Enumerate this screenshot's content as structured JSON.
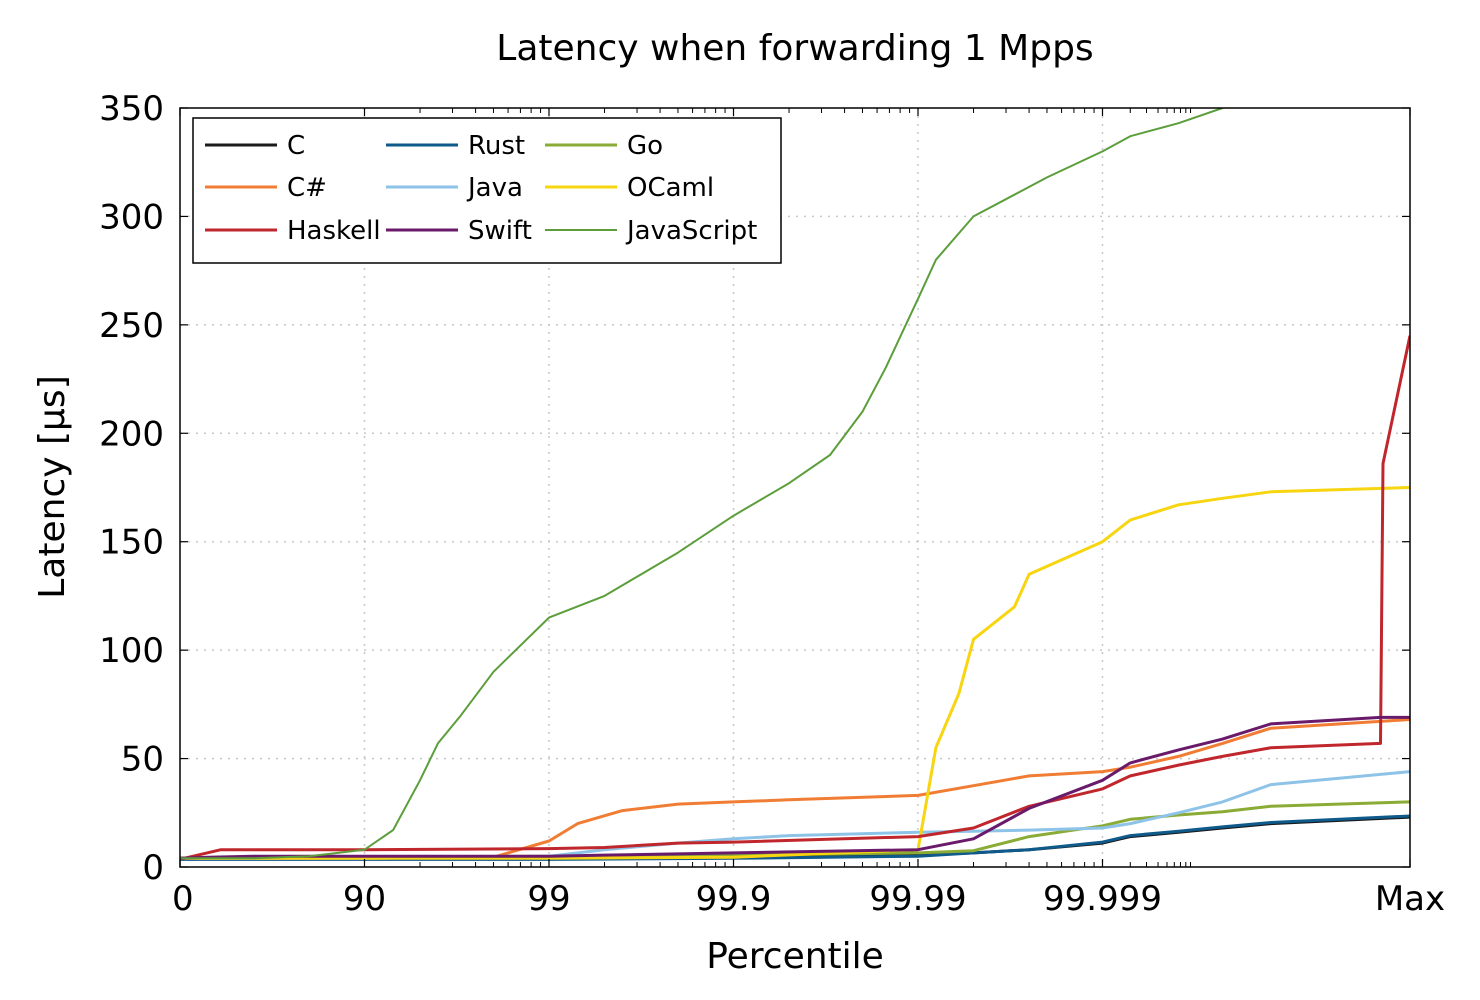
{
  "chart_data": {
    "type": "line",
    "title": "Latency when forwarding 1 Mpps",
    "xlabel": "Percentile",
    "ylabel": "Latency [μs]",
    "x_scale": "inverse-percentile (log of 1/(1-p)), ending at Max",
    "x_tick_labels": [
      "0",
      "90",
      "99",
      "99.9",
      "99.99",
      "99.999",
      "Max"
    ],
    "ylim": [
      0,
      350
    ],
    "y_ticks": [
      0,
      50,
      100,
      150,
      200,
      250,
      300,
      350
    ],
    "grid": true,
    "legend_position": "top-left",
    "legend_columns": 3,
    "x": [
      0,
      0.9,
      0.99,
      0.999,
      0.9999,
      0.99999,
      "Max"
    ],
    "series": [
      {
        "name": "C",
        "color": "#1a1a1a",
        "points": [
          [
            0,
            4
          ],
          [
            0.3,
            4
          ],
          [
            0.6,
            4
          ],
          [
            0.9,
            4
          ],
          [
            0.99,
            4
          ],
          [
            0.999,
            4.5
          ],
          [
            0.9999,
            5.5
          ],
          [
            0.99995,
            6.5
          ],
          [
            0.999975,
            8
          ],
          [
            0.99999,
            11
          ],
          [
            0.999995,
            14
          ],
          [
            0.9999985,
            16
          ],
          [
            0.9999995,
            18
          ],
          [
            0.99999985,
            20
          ],
          [
            "Max",
            23
          ]
        ]
      },
      {
        "name": "Rust",
        "color": "#0e5a8a",
        "points": [
          [
            0,
            3.5
          ],
          [
            0.3,
            3.5
          ],
          [
            0.6,
            3.5
          ],
          [
            0.9,
            3.5
          ],
          [
            0.99,
            3.5
          ],
          [
            0.999,
            4
          ],
          [
            0.9999,
            5
          ],
          [
            0.99995,
            6.5
          ],
          [
            0.999975,
            8
          ],
          [
            0.99999,
            11.5
          ],
          [
            0.999995,
            14.5
          ],
          [
            0.9999985,
            16.5
          ],
          [
            0.9999995,
            18.5
          ],
          [
            0.99999985,
            20.5
          ],
          [
            "Max",
            23.5
          ]
        ]
      },
      {
        "name": "Go",
        "color": "#8aab35",
        "points": [
          [
            0,
            4
          ],
          [
            0.3,
            4
          ],
          [
            0.6,
            4
          ],
          [
            0.9,
            4.5
          ],
          [
            0.99,
            5
          ],
          [
            0.999,
            5.5
          ],
          [
            0.9999,
            6.5
          ],
          [
            0.99995,
            7.5
          ],
          [
            0.999975,
            14
          ],
          [
            0.99999,
            19
          ],
          [
            0.999995,
            22
          ],
          [
            0.9999985,
            24
          ],
          [
            0.9999995,
            25.5
          ],
          [
            0.99999985,
            28
          ],
          [
            "Max",
            30
          ]
        ]
      },
      {
        "name": "C#",
        "color": "#f07d33",
        "points": [
          [
            0,
            4
          ],
          [
            0.3,
            4
          ],
          [
            0.6,
            4
          ],
          [
            0.9,
            4
          ],
          [
            0.98,
            4.5
          ],
          [
            0.99,
            12
          ],
          [
            0.993,
            20
          ],
          [
            0.996,
            26
          ],
          [
            0.998,
            29
          ],
          [
            0.999,
            30
          ],
          [
            0.9995,
            31
          ],
          [
            0.9999,
            33
          ],
          [
            0.99995,
            37.5
          ],
          [
            0.999975,
            42
          ],
          [
            0.99999,
            44
          ],
          [
            0.999995,
            46
          ],
          [
            0.9999985,
            51
          ],
          [
            0.9999995,
            57
          ],
          [
            0.99999985,
            64
          ],
          [
            "Max",
            68
          ]
        ]
      },
      {
        "name": "Java",
        "color": "#8ec3e8",
        "points": [
          [
            0,
            4
          ],
          [
            0.3,
            4
          ],
          [
            0.6,
            4
          ],
          [
            0.9,
            4
          ],
          [
            0.99,
            5
          ],
          [
            0.995,
            8
          ],
          [
            0.998,
            11
          ],
          [
            0.999,
            13
          ],
          [
            0.9995,
            14.5
          ],
          [
            0.9999,
            16
          ],
          [
            0.99995,
            16.5
          ],
          [
            0.999975,
            17
          ],
          [
            0.99999,
            18
          ],
          [
            0.999995,
            20
          ],
          [
            0.9999985,
            25
          ],
          [
            0.9999995,
            30
          ],
          [
            0.99999985,
            38
          ],
          [
            "Max",
            44
          ]
        ]
      },
      {
        "name": "OCaml",
        "color": "#f7d511",
        "points": [
          [
            0,
            4
          ],
          [
            0.3,
            4
          ],
          [
            0.6,
            4
          ],
          [
            0.9,
            4
          ],
          [
            0.99,
            4
          ],
          [
            0.999,
            4.5
          ],
          [
            0.9999,
            8
          ],
          [
            0.99991,
            30
          ],
          [
            0.99992,
            55
          ],
          [
            0.99994,
            80
          ],
          [
            0.99995,
            105
          ],
          [
            0.99997,
            120
          ],
          [
            0.999975,
            135
          ],
          [
            0.99999,
            150
          ],
          [
            0.999995,
            160
          ],
          [
            0.9999985,
            167
          ],
          [
            0.9999995,
            170
          ],
          [
            0.99999985,
            173
          ],
          [
            "Max",
            175
          ]
        ]
      },
      {
        "name": "Haskell",
        "color": "#c0272d",
        "points": [
          [
            0,
            4
          ],
          [
            0.05,
            4
          ],
          [
            0.4,
            8
          ],
          [
            0.6,
            8
          ],
          [
            0.9,
            8
          ],
          [
            0.99,
            8.5
          ],
          [
            0.995,
            9
          ],
          [
            0.998,
            11
          ],
          [
            0.999,
            11.5
          ],
          [
            0.9999,
            14
          ],
          [
            0.99995,
            18
          ],
          [
            0.999975,
            28
          ],
          [
            0.99999,
            36
          ],
          [
            0.999995,
            42
          ],
          [
            0.9999985,
            47
          ],
          [
            0.9999995,
            51
          ],
          [
            0.99999985,
            55
          ],
          [
            0.999999965,
            57
          ],
          [
            0.999999966,
            186
          ],
          [
            "Max",
            245
          ]
        ]
      },
      {
        "name": "Swift",
        "color": "#6a1a6a",
        "points": [
          [
            0,
            4
          ],
          [
            0.3,
            4.5
          ],
          [
            0.6,
            5
          ],
          [
            0.9,
            5
          ],
          [
            0.99,
            5
          ],
          [
            0.995,
            5.5
          ],
          [
            0.999,
            6.5
          ],
          [
            0.9999,
            8
          ],
          [
            0.99995,
            13
          ],
          [
            0.999975,
            27
          ],
          [
            0.99999,
            40
          ],
          [
            0.999995,
            48
          ],
          [
            0.9999985,
            54
          ],
          [
            0.9999995,
            59
          ],
          [
            0.99999985,
            66
          ],
          [
            0.999999965,
            69
          ],
          [
            "Max",
            69
          ]
        ]
      },
      {
        "name": "JavaScript",
        "color": "#5c9e3b",
        "points": [
          [
            0,
            4
          ],
          [
            0.3,
            4
          ],
          [
            0.6,
            4
          ],
          [
            0.8,
            5
          ],
          [
            0.9,
            8
          ],
          [
            0.93,
            17
          ],
          [
            0.95,
            40
          ],
          [
            0.96,
            57
          ],
          [
            0.97,
            70
          ],
          [
            0.98,
            90
          ],
          [
            0.99,
            115
          ],
          [
            0.995,
            125
          ],
          [
            0.998,
            145
          ],
          [
            0.999,
            162
          ],
          [
            0.9995,
            177
          ],
          [
            0.9997,
            190
          ],
          [
            0.9998,
            210
          ],
          [
            0.99985,
            230
          ],
          [
            0.9999,
            262
          ],
          [
            0.99992,
            280
          ],
          [
            0.99995,
            300
          ],
          [
            0.99998,
            318
          ],
          [
            0.99999,
            330
          ],
          [
            0.999995,
            337
          ],
          [
            0.9999985,
            343
          ],
          [
            0.9999995,
            350
          ]
        ]
      }
    ]
  }
}
